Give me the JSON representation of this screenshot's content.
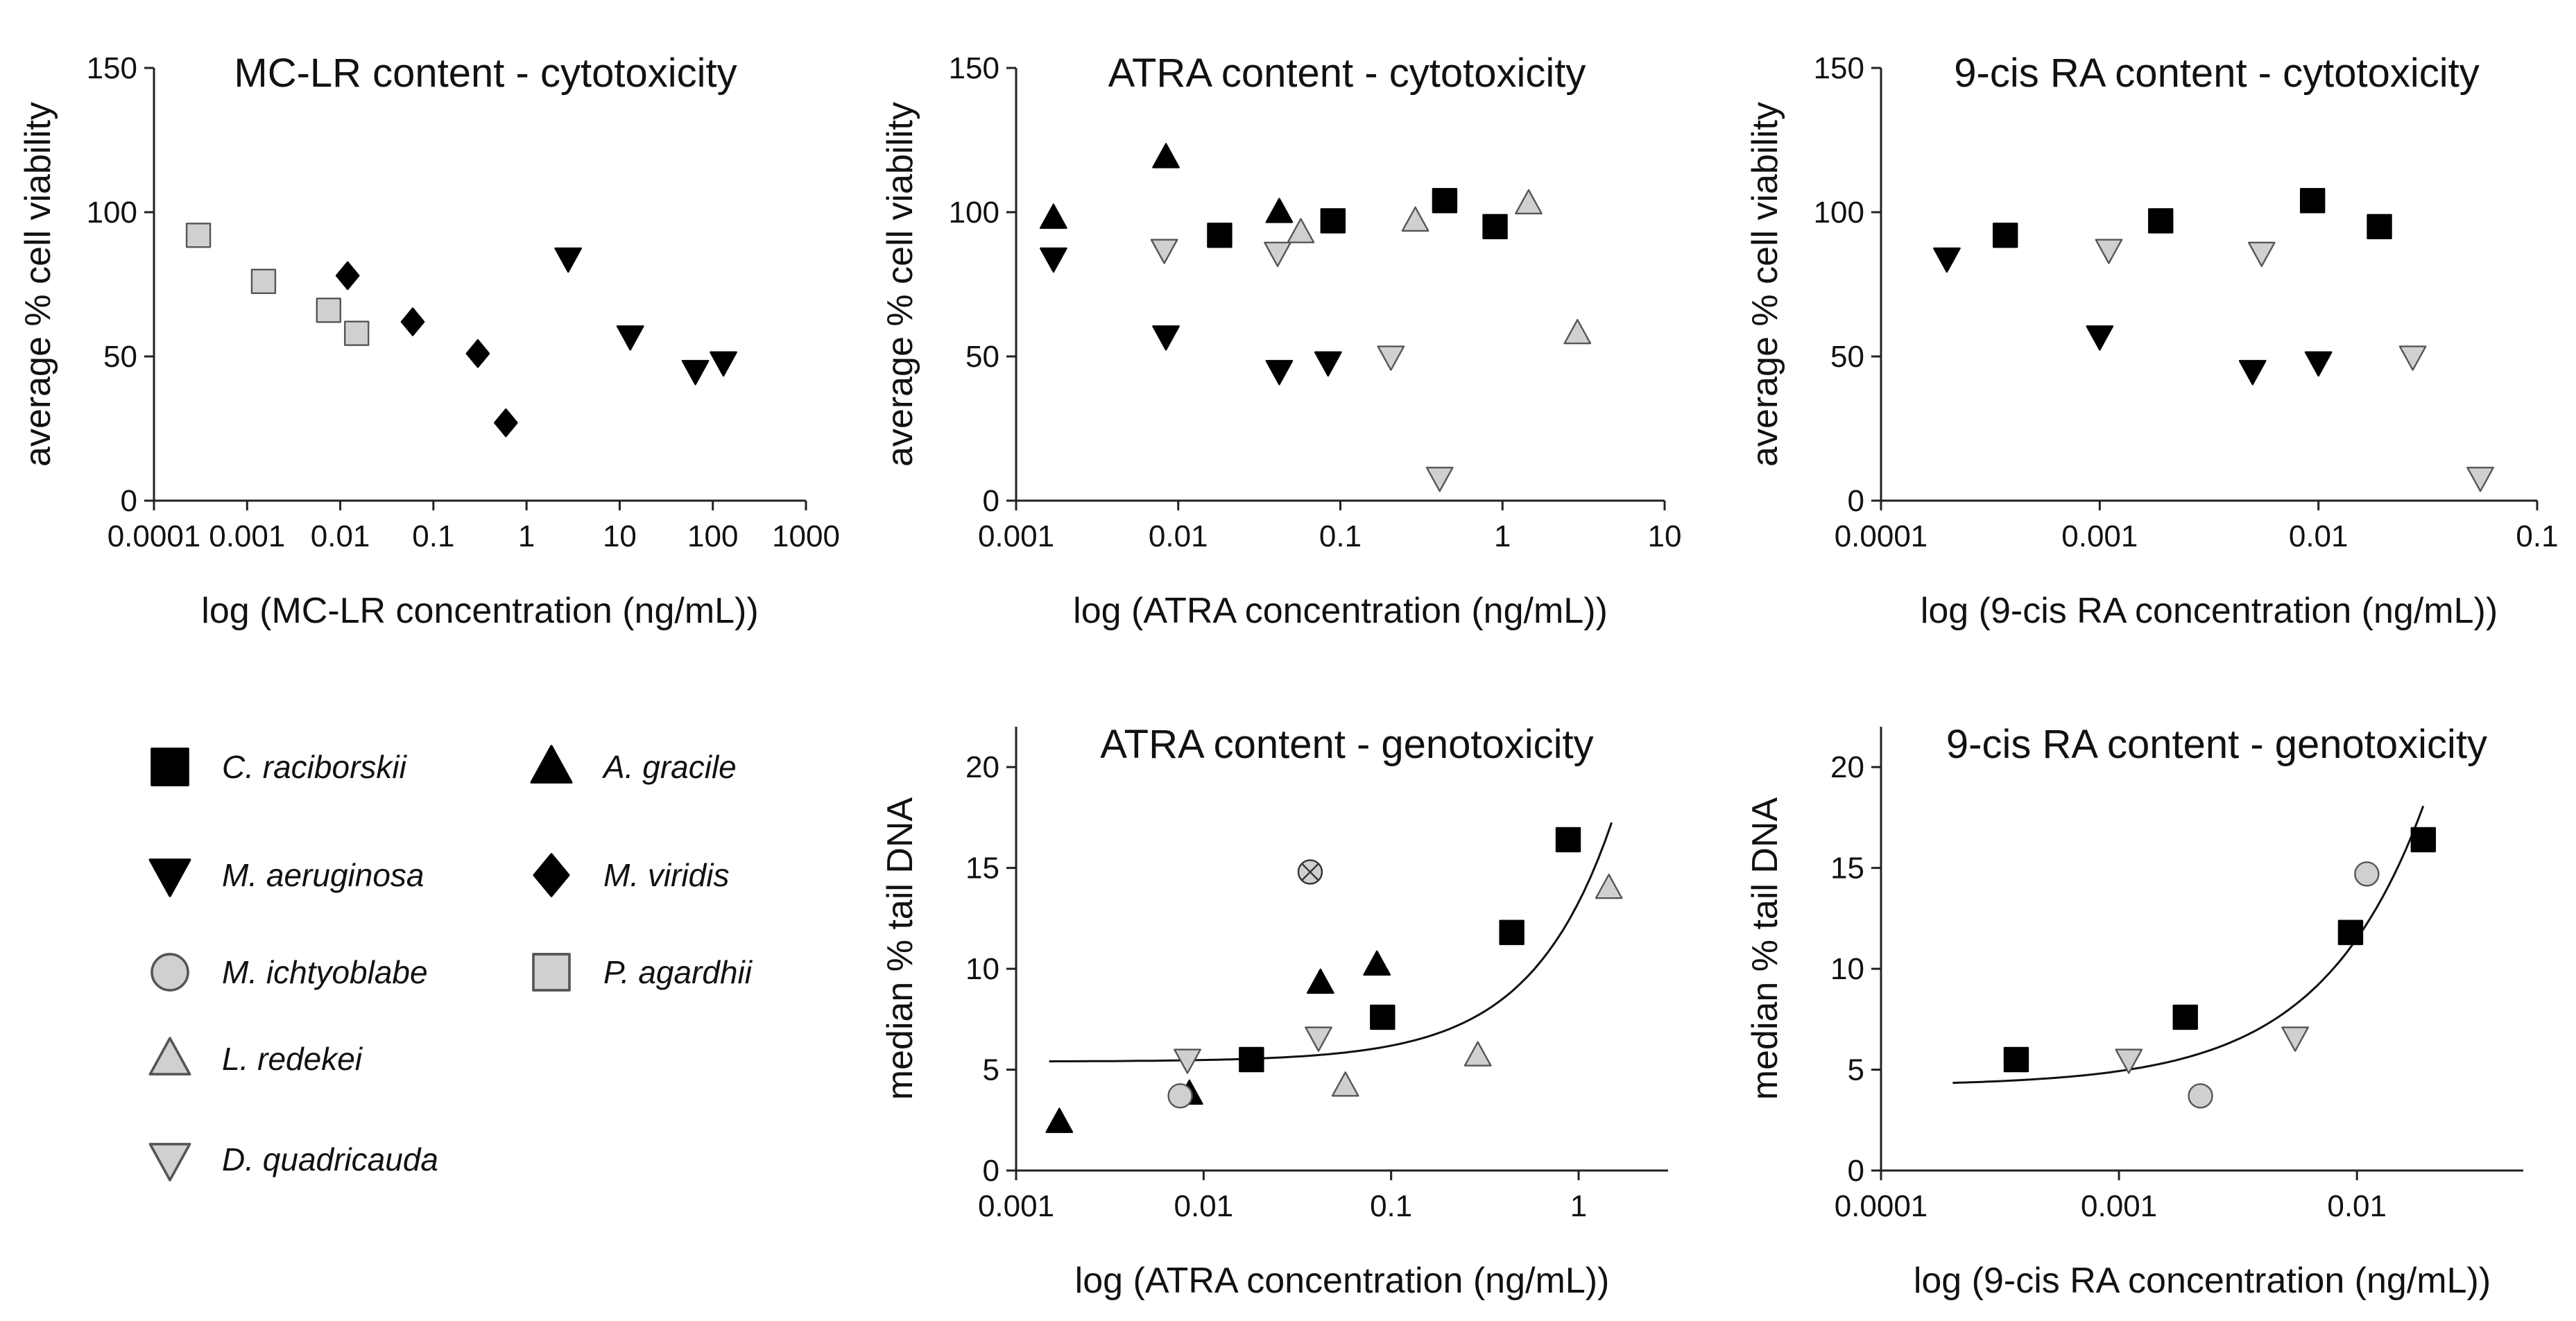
{
  "legend": {
    "items": [
      {
        "key": "C",
        "label": "C. raciborskii"
      },
      {
        "key": "A",
        "label": "A. gracile"
      },
      {
        "key": "M",
        "label": "M. aeruginosa"
      },
      {
        "key": "V",
        "label": "M. viridis"
      },
      {
        "key": "I",
        "label": "M. ichtyoblabe"
      },
      {
        "key": "P",
        "label": "P. agardhii"
      },
      {
        "key": "L",
        "label": "L. redekei"
      },
      {
        "key": "D",
        "label": "D. quadricauda"
      }
    ]
  },
  "chart_data": [
    {
      "id": "mclr-cyto",
      "type": "scatter",
      "title": "MC-LR content - cytotoxicity",
      "xlabel": "log (MC-LR concentration (ng/mL))",
      "ylabel": "average % cell viability",
      "xscale": "log",
      "xlim": [
        0.0001,
        1000
      ],
      "ylim": [
        0,
        150
      ],
      "xticks": [
        {
          "v": 0.0001,
          "t": "0.0001"
        },
        {
          "v": 0.001,
          "t": "0.001"
        },
        {
          "v": 0.01,
          "t": "0.01"
        },
        {
          "v": 0.1,
          "t": "0.1"
        },
        {
          "v": 1,
          "t": "1"
        },
        {
          "v": 10,
          "t": "10"
        },
        {
          "v": 100,
          "t": "100"
        },
        {
          "v": 1000,
          "t": "1000"
        }
      ],
      "yticks": [
        0,
        50,
        100,
        150
      ],
      "series": [
        {
          "key": "P",
          "name": "P. agardhii",
          "points": [
            [
              0.0003,
              92
            ],
            [
              0.0015,
              76
            ],
            [
              0.0075,
              66
            ],
            [
              0.015,
              58
            ]
          ]
        },
        {
          "key": "V",
          "name": "M. viridis",
          "points": [
            [
              0.012,
              78
            ],
            [
              0.06,
              62
            ],
            [
              0.3,
              51
            ],
            [
              0.6,
              27
            ]
          ]
        },
        {
          "key": "M",
          "name": "M. aeruginosa",
          "points": [
            [
              2.8,
              84
            ],
            [
              13,
              57
            ],
            [
              65,
              45
            ],
            [
              130,
              48
            ]
          ]
        }
      ]
    },
    {
      "id": "atra-cyto",
      "type": "scatter",
      "title": "ATRA content - cytotoxicity",
      "xlabel": "log (ATRA concentration (ng/mL))",
      "ylabel": "average % cell viability",
      "xscale": "log",
      "xlim": [
        0.001,
        10
      ],
      "ylim": [
        0,
        150
      ],
      "xticks": [
        {
          "v": 0.001,
          "t": "0.001"
        },
        {
          "v": 0.01,
          "t": "0.01"
        },
        {
          "v": 0.1,
          "t": "0.1"
        },
        {
          "v": 1,
          "t": "1"
        },
        {
          "v": 10,
          "t": "10"
        }
      ],
      "yticks": [
        0,
        50,
        100,
        150
      ],
      "series": [
        {
          "key": "C",
          "name": "C. raciborskii",
          "points": [
            [
              0.018,
              92
            ],
            [
              0.09,
              97
            ],
            [
              0.44,
              104
            ],
            [
              0.9,
              95
            ]
          ]
        },
        {
          "key": "A",
          "name": "A. gracile",
          "points": [
            [
              0.0017,
              98
            ],
            [
              0.0084,
              119
            ],
            [
              0.042,
              100
            ]
          ]
        },
        {
          "key": "M",
          "name": "M. aeruginosa",
          "points": [
            [
              0.0017,
              84
            ],
            [
              0.0084,
              57
            ],
            [
              0.042,
              45
            ],
            [
              0.084,
              48
            ]
          ]
        },
        {
          "key": "L",
          "name": "L. redekei",
          "points": [
            [
              0.057,
              93
            ],
            [
              0.29,
              97
            ],
            [
              1.45,
              103
            ],
            [
              2.9,
              58
            ]
          ]
        },
        {
          "key": "D",
          "name": "D. quadricauda",
          "points": [
            [
              0.0082,
              87
            ],
            [
              0.041,
              86
            ],
            [
              0.205,
              50
            ],
            [
              0.41,
              8
            ]
          ]
        }
      ]
    },
    {
      "id": "9cis-cyto",
      "type": "scatter",
      "title": "9-cis RA content - cytotoxicity",
      "xlabel": "log (9-cis RA concentration (ng/mL))",
      "ylabel": "average % cell viability",
      "xscale": "log",
      "xlim": [
        0.0001,
        0.1
      ],
      "ylim": [
        0,
        150
      ],
      "xticks": [
        {
          "v": 0.0001,
          "t": "0.0001"
        },
        {
          "v": 0.001,
          "t": "0.001"
        },
        {
          "v": 0.01,
          "t": "0.01"
        },
        {
          "v": 0.1,
          "t": "0.1"
        }
      ],
      "yticks": [
        0,
        50,
        100,
        150
      ],
      "series": [
        {
          "key": "C",
          "name": "C. raciborskii",
          "points": [
            [
              0.00037,
              92
            ],
            [
              0.0019,
              97
            ],
            [
              0.0094,
              104
            ],
            [
              0.019,
              95
            ]
          ]
        },
        {
          "key": "M",
          "name": "M. aeruginosa",
          "points": [
            [
              0.0002,
              84
            ],
            [
              0.001,
              57
            ],
            [
              0.005,
              45
            ],
            [
              0.01,
              48
            ]
          ]
        },
        {
          "key": "D",
          "name": "D. quadricauda",
          "points": [
            [
              0.0011,
              87
            ],
            [
              0.0055,
              86
            ],
            [
              0.027,
              50
            ],
            [
              0.055,
              8
            ]
          ]
        }
      ]
    },
    {
      "id": "atra-geno",
      "type": "scatter",
      "title": "ATRA content - genotoxicity",
      "xlabel": "log (ATRA concentration (ng/mL))",
      "ylabel": "median % tail DNA",
      "xscale": "log",
      "xlim": [
        0.001,
        3
      ],
      "ylim": [
        0,
        22
      ],
      "xticks": [
        {
          "v": 0.001,
          "t": "0.001"
        },
        {
          "v": 0.01,
          "t": "0.01"
        },
        {
          "v": 0.1,
          "t": "0.1"
        },
        {
          "v": 1,
          "t": "1"
        }
      ],
      "yticks": [
        0,
        5,
        10,
        15,
        20
      ],
      "fit": {
        "base": 5.4,
        "k": 7.9,
        "xmin": 0.0015,
        "xmax": 1.5
      },
      "series": [
        {
          "key": "C",
          "name": "C. raciborskii",
          "points": [
            [
              0.018,
              5.5
            ],
            [
              0.09,
              7.6
            ],
            [
              0.44,
              11.8
            ],
            [
              0.88,
              16.4
            ]
          ]
        },
        {
          "key": "A",
          "name": "A. gracile",
          "points": [
            [
              0.0017,
              2.4
            ],
            [
              0.0084,
              3.8
            ],
            [
              0.042,
              9.3
            ],
            [
              0.084,
              10.2
            ]
          ]
        },
        {
          "key": "I",
          "name": "M. ichtyoblabe",
          "points": [
            [
              0.0075,
              3.7
            ]
          ]
        },
        {
          "key": "X",
          "name": "crossed circle",
          "points": [
            [
              0.037,
              14.8
            ]
          ]
        },
        {
          "key": "L",
          "name": "L. redekei",
          "points": [
            [
              0.057,
              4.2
            ],
            [
              0.29,
              5.7
            ],
            [
              1.45,
              14.0
            ]
          ]
        },
        {
          "key": "D",
          "name": "D. quadricauda",
          "points": [
            [
              0.0082,
              5.5
            ],
            [
              0.041,
              6.6
            ]
          ]
        }
      ]
    },
    {
      "id": "9cis-geno",
      "type": "scatter",
      "title": "9-cis RA content - genotoxicity",
      "xlabel": "log (9-cis RA concentration (ng/mL))",
      "ylabel": "median % tail DNA",
      "xscale": "log",
      "xlim": [
        0.0001,
        0.05
      ],
      "ylim": [
        0,
        22
      ],
      "xticks": [
        {
          "v": 0.0001,
          "t": "0.0001"
        },
        {
          "v": 0.001,
          "t": "0.001"
        },
        {
          "v": 0.01,
          "t": "0.01"
        }
      ],
      "yticks": [
        0,
        5,
        10,
        15,
        20
      ],
      "fit": {
        "base": 4.2,
        "k": 730,
        "xmin": 0.0002,
        "xmax": 0.019
      },
      "series": [
        {
          "key": "C",
          "name": "C. raciborskii",
          "points": [
            [
              0.00037,
              5.5
            ],
            [
              0.0019,
              7.6
            ],
            [
              0.0094,
              11.8
            ],
            [
              0.019,
              16.4
            ]
          ]
        },
        {
          "key": "I",
          "name": "M. ichtyoblabe",
          "points": [
            [
              0.0022,
              3.7
            ],
            [
              0.011,
              14.7
            ]
          ]
        },
        {
          "key": "D",
          "name": "D. quadricauda",
          "points": [
            [
              0.0011,
              5.5
            ],
            [
              0.0055,
              6.6
            ]
          ]
        }
      ]
    }
  ]
}
